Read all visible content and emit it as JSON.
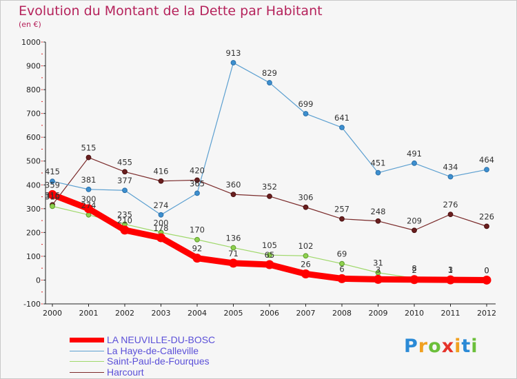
{
  "title": "Evolution du Montant de la Dette par Habitant",
  "unit_label": "(en €)",
  "logo": "Proxiti",
  "chart_data": {
    "type": "line",
    "x": [
      "2000",
      "2001",
      "2002",
      "2003",
      "2004",
      "2005",
      "2006",
      "2007",
      "2008",
      "2009",
      "2010",
      "2011",
      "2012"
    ],
    "ylim": [
      -100,
      1000
    ],
    "yticks": [
      "-100",
      "0",
      "100",
      "200",
      "300",
      "400",
      "500",
      "600",
      "700",
      "800",
      "900",
      "1000"
    ],
    "grid": false,
    "legend_position": "bottom-left",
    "series": [
      {
        "name": "LA NEUVILLE-DU-BOSC",
        "color": "#ff0000",
        "values": [
          359,
          300,
          210,
          178,
          92,
          71,
          65,
          26,
          6,
          3,
          2,
          1,
          0
        ],
        "labels": [
          "359",
          "300",
          "210",
          "178",
          "92",
          "71",
          "65",
          "26",
          "6",
          "3",
          "2",
          "1",
          "0"
        ]
      },
      {
        "name": "La Haye-de-Calleville",
        "color": "#5b9fd0",
        "values": [
          415,
          381,
          377,
          274,
          365,
          913,
          829,
          699,
          641,
          451,
          491,
          434,
          464
        ],
        "labels": [
          "415",
          "381",
          "377",
          "274",
          "365",
          "913",
          "829",
          "699",
          "641",
          "451",
          "491",
          "434",
          "464"
        ]
      },
      {
        "name": "Saint-Paul-de-Fourques",
        "color": "#9fd86a",
        "values": [
          310,
          274,
          235,
          200,
          170,
          136,
          105,
          102,
          69,
          31,
          8,
          3,
          0
        ],
        "labels": [
          "310",
          "274",
          "235",
          "200",
          "170",
          "136",
          "105",
          "102",
          "69",
          "31",
          "8",
          "3",
          "0"
        ]
      },
      {
        "name": "Harcourt",
        "color": "#7a2a2a",
        "values": [
          316,
          515,
          455,
          416,
          420,
          360,
          352,
          306,
          257,
          248,
          209,
          276,
          226
        ],
        "labels": [
          "316",
          "515",
          "455",
          "416",
          "420",
          "360",
          "352",
          "306",
          "257",
          "248",
          "209",
          "276",
          "226"
        ]
      }
    ]
  }
}
